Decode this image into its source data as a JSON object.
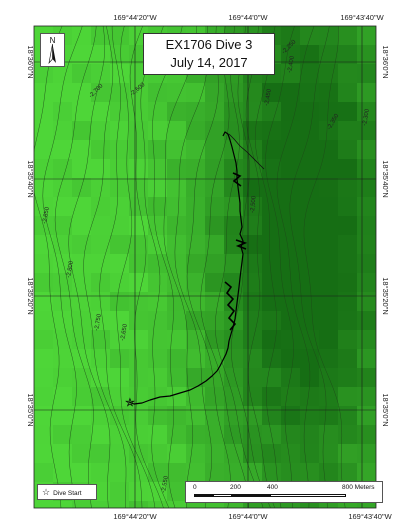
{
  "title": {
    "line1": "EX1706 Dive 3",
    "line2": "July 14, 2017"
  },
  "north_label": "N",
  "lon_ticks": [
    "169°44'20\"W",
    "169°44'0\"W",
    "169°43'40\"W"
  ],
  "lat_ticks": [
    "18°36'0\"N",
    "18°35'40\"N",
    "18°35'20\"N",
    "18°35'0\"N"
  ],
  "contour_labels": [
    "-2,850",
    "-2,800",
    "-2,750",
    "-2,700",
    "-2,650",
    "-2,600",
    "-2,550",
    "-2,500",
    "-2,450",
    "-2,400",
    "-2,350",
    "-2,300",
    "-2,250"
  ],
  "legend": {
    "symbol": "☆",
    "label": "Dive Start"
  },
  "scale_bar": {
    "labels": [
      "0",
      "200",
      "400",
      "800 Meters"
    ]
  },
  "colors": {
    "bathy_light": "#4cd134",
    "bathy_mid": "#3bbd2a",
    "bathy_dark": "#1f7f18",
    "track": "#000000"
  }
}
